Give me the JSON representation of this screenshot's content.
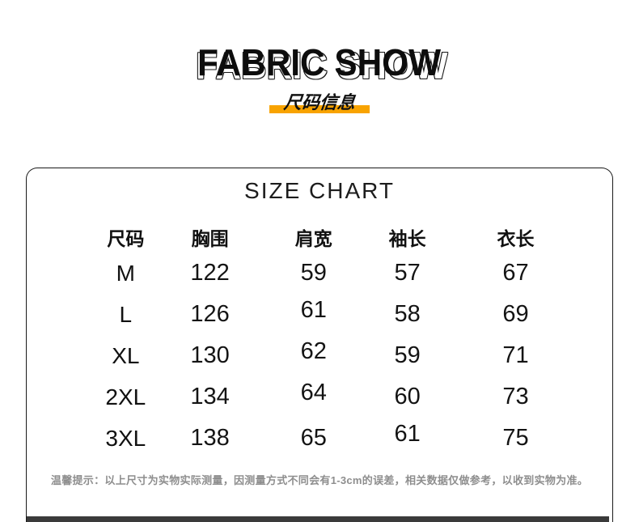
{
  "header": {
    "title": "FABRIC SHOW",
    "subtitle": "尺码信息"
  },
  "size_chart": {
    "title": "SIZE CHART",
    "columns": [
      "尺码",
      "胸围",
      "肩宽",
      "袖长",
      "衣长"
    ],
    "rows": [
      [
        "M",
        "122",
        "59",
        "57",
        "67"
      ],
      [
        "L",
        "126",
        "61",
        "58",
        "69"
      ],
      [
        "XL",
        "130",
        "62",
        "59",
        "71"
      ],
      [
        "2XL",
        "134",
        "64",
        "60",
        "73"
      ],
      [
        "3XL",
        "138",
        "65",
        "61",
        "75"
      ]
    ],
    "note": "温馨提示：以上尺寸为实物实际测量，因测量方式不同会有1-3cm的误差，相关数据仅做参考，以收到实物为准。"
  },
  "chart_data": {
    "type": "table",
    "title": "SIZE CHART",
    "columns": [
      "尺码",
      "胸围",
      "肩宽",
      "袖长",
      "衣长"
    ],
    "rows": [
      [
        "M",
        122,
        59,
        57,
        67
      ],
      [
        "L",
        126,
        61,
        58,
        69
      ],
      [
        "XL",
        130,
        62,
        59,
        71
      ],
      [
        "2XL",
        134,
        64,
        60,
        73
      ],
      [
        "3XL",
        138,
        65,
        61,
        75
      ]
    ]
  },
  "colors": {
    "accent_highlight": "#F8A300",
    "bottom_strip": "#3A3A3A",
    "text_primary": "#111111",
    "note_gray": "#8E8E8E"
  }
}
